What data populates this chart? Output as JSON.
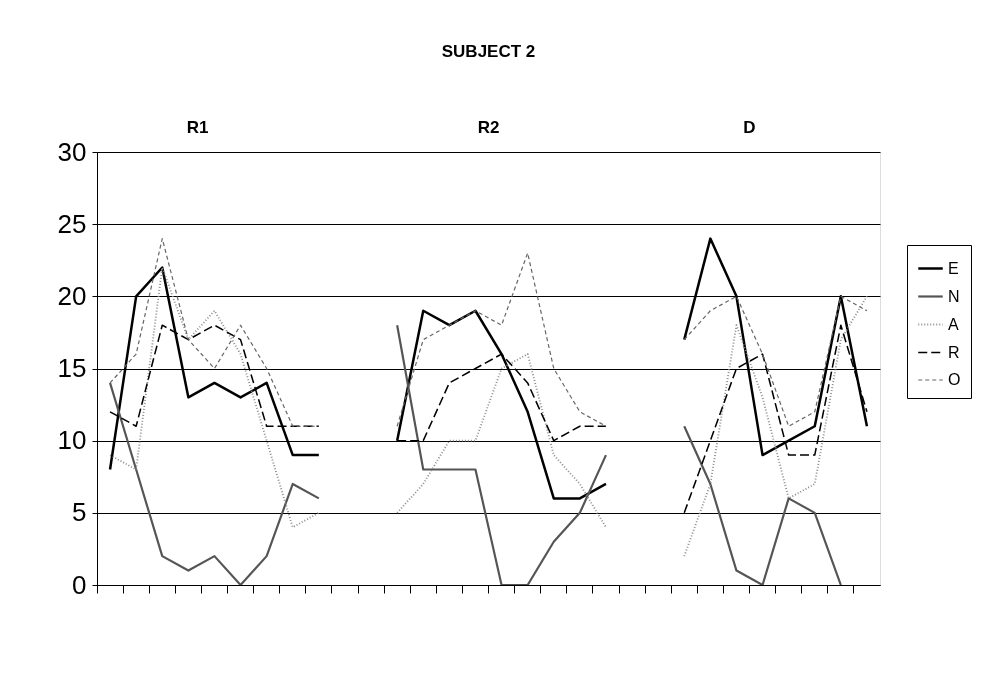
{
  "chart_data": {
    "type": "line",
    "title": "SUBJECT 2",
    "annotations": [
      "R1",
      "R2",
      "D"
    ],
    "categories": [
      null,
      null,
      null,
      null,
      null,
      null,
      null,
      null,
      null,
      null,
      null,
      null,
      null,
      null,
      null,
      null,
      null,
      null,
      null,
      null,
      null,
      null,
      null,
      null,
      null,
      null,
      null,
      null,
      null,
      null
    ],
    "series": [
      {
        "name": "E",
        "color": "#000000",
        "line_style": "solid",
        "values": [
          8,
          20,
          22,
          13,
          14,
          13,
          14,
          9,
          9,
          null,
          null,
          10,
          19,
          18,
          19,
          16,
          12,
          6,
          6,
          7,
          null,
          null,
          17,
          24,
          20,
          9,
          10,
          11,
          20,
          11
        ]
      },
      {
        "name": "N",
        "color": "#555555",
        "line_style": "solid",
        "values": [
          14,
          8,
          2,
          1,
          2,
          0,
          2,
          7,
          6,
          null,
          null,
          18,
          8,
          8,
          8,
          0,
          0,
          3,
          5,
          9,
          null,
          null,
          11,
          7,
          1,
          0,
          6,
          5,
          0,
          null
        ]
      },
      {
        "name": "A",
        "color": "#8c8c8c",
        "line_style": "dotted",
        "values": [
          9,
          8,
          22,
          17,
          19,
          16,
          10,
          4,
          5,
          null,
          null,
          5,
          7,
          10,
          10,
          15,
          16,
          9,
          7,
          4,
          null,
          null,
          2,
          7,
          18,
          13,
          6,
          7,
          17,
          20
        ]
      },
      {
        "name": "R",
        "color": "#000000",
        "line_style": "dashed",
        "values": [
          12,
          11,
          18,
          17,
          18,
          17,
          11,
          11,
          11,
          null,
          null,
          10,
          10,
          14,
          15,
          16,
          14,
          10,
          11,
          11,
          null,
          null,
          5,
          10,
          15,
          16,
          9,
          9,
          18,
          12
        ]
      },
      {
        "name": "O",
        "color": "#666666",
        "line_style": "dashed",
        "values": [
          14,
          16,
          24,
          17,
          15,
          18,
          15,
          11,
          11,
          null,
          null,
          11,
          17,
          18,
          19,
          18,
          23,
          15,
          12,
          11,
          null,
          null,
          17,
          19,
          20,
          16,
          11,
          12,
          20,
          19
        ]
      }
    ],
    "ylim": [
      0,
      30
    ],
    "yticks": [
      0,
      5,
      10,
      15,
      20,
      25,
      30
    ],
    "grid": "y",
    "legend": "right"
  }
}
